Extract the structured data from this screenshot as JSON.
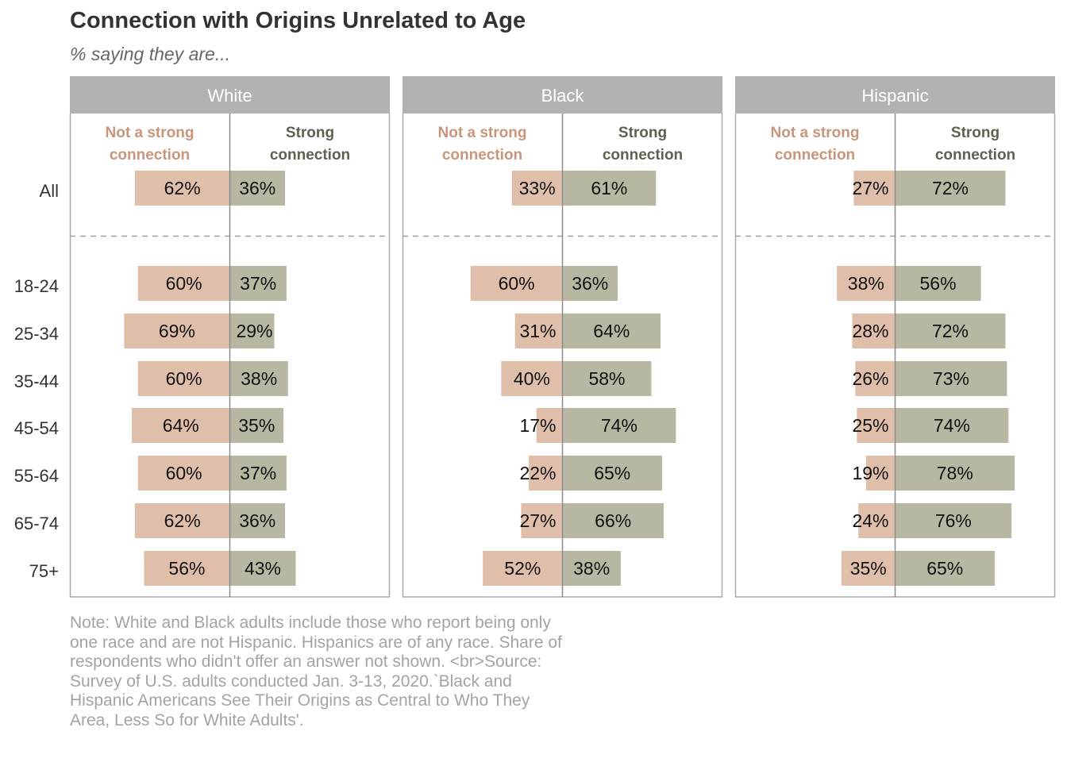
{
  "title": "Connection with Origins Unrelated to Age",
  "subtitle": "% saying they are...",
  "note": "Note: White and Black adults include those who report being only one race and are not Hispanic. Hispanics are of any race. Share of respondents who didn't offer an answer not shown. <br>Source: Survey of U.S. adults conducted Jan. 3-13, 2020.`Black and Hispanic Americans See Their Origins as Central to Who They Area, Less So for White Adults'.",
  "chart_data": {
    "type": "bar",
    "orientation": "horizontal-diverging",
    "categories": [
      "All",
      "18-24",
      "25-34",
      "35-44",
      "45-54",
      "55-64",
      "65-74",
      "75+"
    ],
    "facets": [
      {
        "name": "White",
        "series": [
          {
            "name": "Not a strong connection",
            "values": [
              62,
              60,
              69,
              60,
              64,
              60,
              62,
              56
            ]
          },
          {
            "name": "Strong connection",
            "values": [
              36,
              37,
              29,
              38,
              35,
              37,
              36,
              43
            ]
          }
        ]
      },
      {
        "name": "Black",
        "series": [
          {
            "name": "Not a strong connection",
            "values": [
              33,
              60,
              31,
              40,
              17,
              22,
              27,
              52
            ]
          },
          {
            "name": "Strong connection",
            "values": [
              61,
              36,
              64,
              58,
              74,
              65,
              66,
              38
            ]
          }
        ]
      },
      {
        "name": "Hispanic",
        "series": [
          {
            "name": "Not a strong connection",
            "values": [
              27,
              38,
              28,
              26,
              25,
              19,
              24,
              35
            ]
          },
          {
            "name": "Strong connection",
            "values": [
              72,
              56,
              72,
              73,
              74,
              78,
              76,
              65
            ]
          }
        ]
      }
    ],
    "value_suffix": "%",
    "colors": {
      "not_strong": "#dfbfaa",
      "strong": "#b8b7a2",
      "not_strong_label": "#c9957a",
      "strong_label": "#5f6052",
      "facet_header": "#b2b2b2",
      "frame": "#a8a8a8"
    },
    "grid": false,
    "legend": "column-headers"
  }
}
